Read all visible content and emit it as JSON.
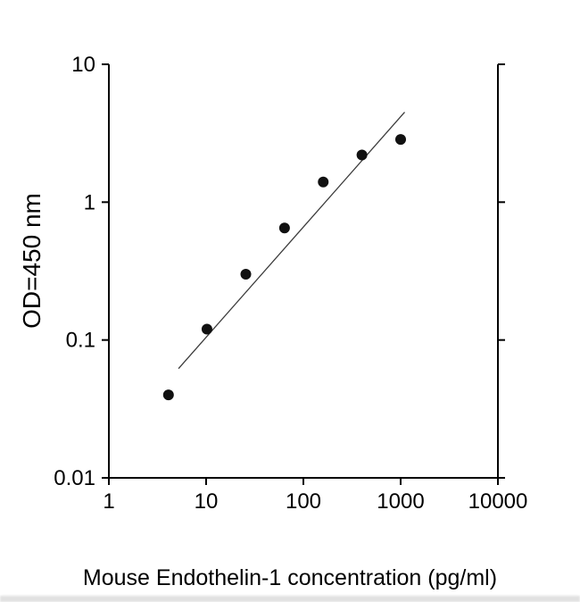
{
  "chart_data": {
    "type": "scatter",
    "title": "",
    "xlabel": "Mouse Endothelin-1 concentration (pg/ml)",
    "ylabel": "OD=450 nm",
    "x_scale": "log",
    "y_scale": "log",
    "xlim": [
      1,
      10000
    ],
    "ylim": [
      0.01,
      10
    ],
    "x_ticks": [
      1,
      10,
      100,
      1000,
      10000
    ],
    "x_tick_labels": [
      "1",
      "10",
      "100",
      "1000",
      "10000"
    ],
    "y_ticks": [
      0.01,
      0.1,
      1,
      10
    ],
    "y_tick_labels": [
      "0.01",
      "0.1",
      "1",
      "10"
    ],
    "grid": false,
    "legend": false,
    "series": [
      {
        "name": "standard-curve-points",
        "x": [
          4.1,
          10.2,
          25.6,
          64,
          160,
          400,
          1000
        ],
        "y": [
          0.04,
          0.12,
          0.3,
          0.65,
          1.4,
          2.2,
          2.85
        ]
      }
    ],
    "trendline": {
      "x1": 5.2,
      "y1": 0.062,
      "x2": 1100,
      "y2": 4.5
    },
    "marker": {
      "shape": "circle",
      "color": "#111111",
      "radius": 6
    },
    "line_color": "#3a3a3a",
    "axis_color": "#000000"
  }
}
